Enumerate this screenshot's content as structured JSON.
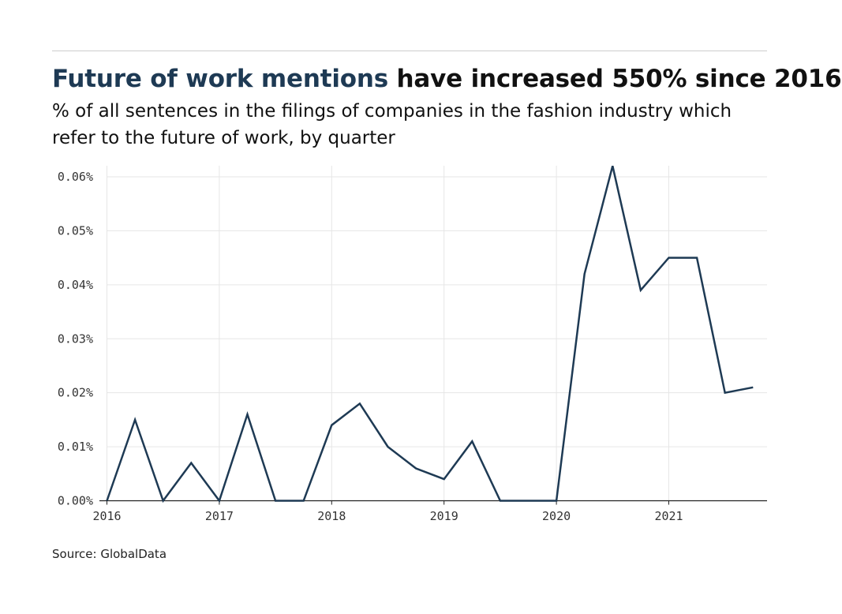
{
  "header": {
    "title_highlight": "Future of work mentions",
    "title_rest": " have increased 550% since 2016",
    "subtitle": "% of all sentences in the filings of companies in the fashion industry which refer to the future of work, by quarter"
  },
  "footer": {
    "source": "Source: GlobalData"
  },
  "colors": {
    "line": "#1e3a54",
    "grid": "#e6e6e6",
    "axis": "#222222"
  },
  "chart_data": {
    "type": "line",
    "title": "Future of work mentions have increased 550% since 2016",
    "subtitle": "% of all sentences in the filings of companies in the fashion industry which refer to the future of work, by quarter",
    "xlabel": "",
    "ylabel": "",
    "x": [
      "2016 Q1",
      "2016 Q2",
      "2016 Q3",
      "2016 Q4",
      "2017 Q1",
      "2017 Q2",
      "2017 Q3",
      "2017 Q4",
      "2018 Q1",
      "2018 Q2",
      "2018 Q3",
      "2018 Q4",
      "2019 Q1",
      "2019 Q2",
      "2019 Q3",
      "2019 Q4",
      "2020 Q1",
      "2020 Q2",
      "2020 Q3",
      "2020 Q4",
      "2021 Q1",
      "2021 Q2",
      "2021 Q3",
      "2021 Q4"
    ],
    "series": [
      {
        "values": [
          0.0,
          0.015,
          0.0,
          0.007,
          0.0,
          0.016,
          0.0,
          0.0,
          0.014,
          0.018,
          0.01,
          0.006,
          0.004,
          0.011,
          0.0,
          0.0,
          0.0,
          0.042,
          0.062,
          0.039,
          0.045,
          0.045,
          0.02,
          0.021
        ]
      }
    ],
    "x_ticks": [
      "2016",
      "2017",
      "2018",
      "2019",
      "2020",
      "2021"
    ],
    "y_ticks": [
      0,
      0.01,
      0.02,
      0.03,
      0.04,
      0.05,
      0.06
    ],
    "y_tick_labels": [
      "0.00%",
      "0.01%",
      "0.02%",
      "0.03%",
      "0.04%",
      "0.05%",
      "0.06%"
    ],
    "ylim": [
      0,
      0.062
    ],
    "grid": true,
    "legend": "none"
  }
}
